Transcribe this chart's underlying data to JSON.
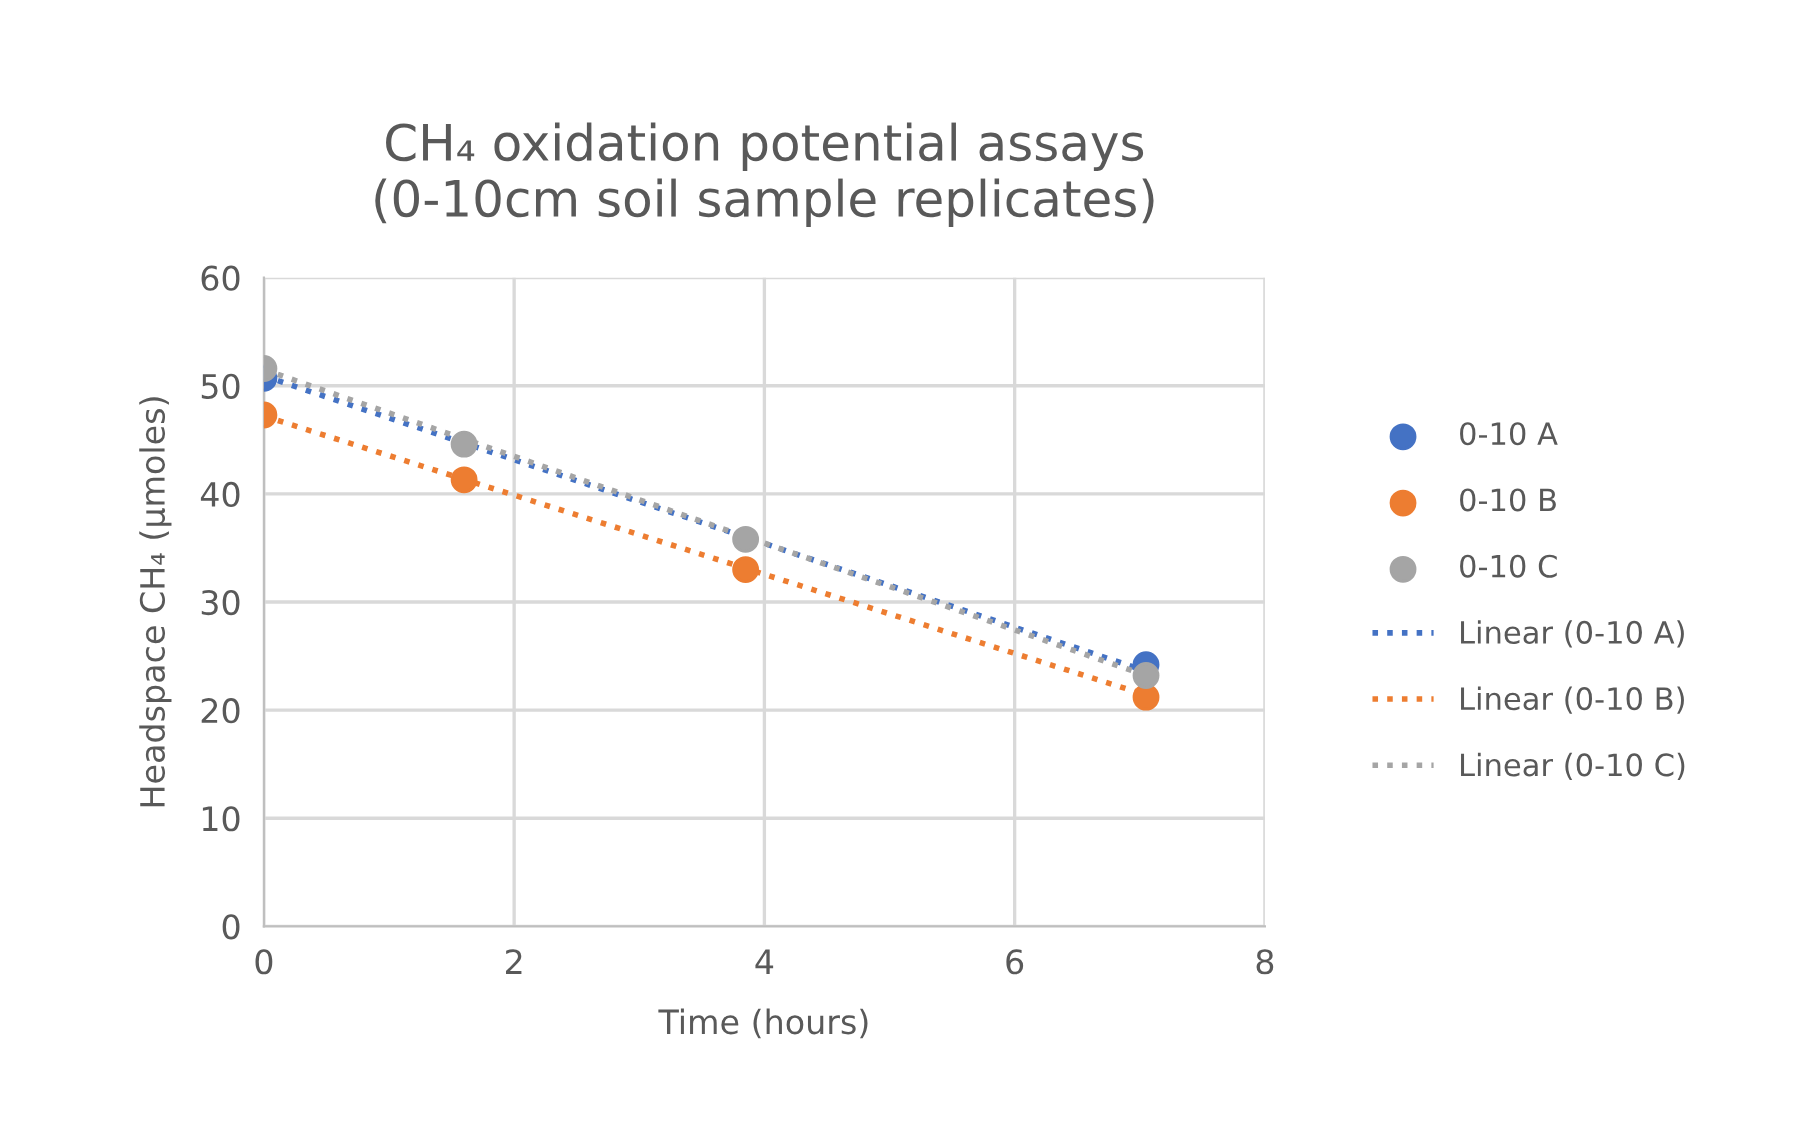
{
  "chart_data": {
    "type": "scatter",
    "title": "CH₄ oxidation potential assays\n(0-10cm soil sample replicates)",
    "xlabel": "Time (hours)",
    "ylabel": "Headspace CH₄ (µmoles)",
    "xlim": [
      0,
      8
    ],
    "xticks": [
      0,
      2,
      4,
      6,
      8
    ],
    "ylim": [
      0,
      60
    ],
    "yticks": [
      0,
      10,
      20,
      30,
      40,
      50,
      60
    ],
    "grid": true,
    "legend": "right",
    "series": [
      {
        "name": "0-10 A",
        "marker": "circle",
        "color": "#4472c4",
        "x": [
          0,
          1.6,
          3.85,
          7.05
        ],
        "values": [
          50.7,
          null,
          null,
          24.2
        ]
      },
      {
        "name": "0-10 B",
        "marker": "circle",
        "color": "#ed7d31",
        "x": [
          0,
          1.6,
          3.85,
          7.05
        ],
        "values": [
          47.3,
          41.3,
          33.0,
          21.2
        ]
      },
      {
        "name": "0-10 C",
        "marker": "circle",
        "color": "#a5a5a5",
        "x": [
          0,
          1.6,
          3.85,
          7.05
        ],
        "values": [
          51.6,
          44.6,
          35.8,
          23.2
        ]
      },
      {
        "name": "Linear (0-10 A)",
        "type": "line",
        "line_style": "dotted",
        "marker": "none",
        "color": "#4472c4",
        "x": [
          0,
          7.05
        ],
        "values": [
          50.9,
          23.6
        ]
      },
      {
        "name": "Linear (0-10 B)",
        "type": "line",
        "line_style": "dotted",
        "marker": "none",
        "color": "#ed7d31",
        "x": [
          0,
          7.05
        ],
        "values": [
          47.2,
          21.4
        ]
      },
      {
        "name": "Linear (0-10 C)",
        "type": "line",
        "line_style": "dotted",
        "marker": "none",
        "color": "#a5a5a5",
        "x": [
          0,
          7.05
        ],
        "values": [
          51.5,
          23.2
        ]
      }
    ]
  }
}
